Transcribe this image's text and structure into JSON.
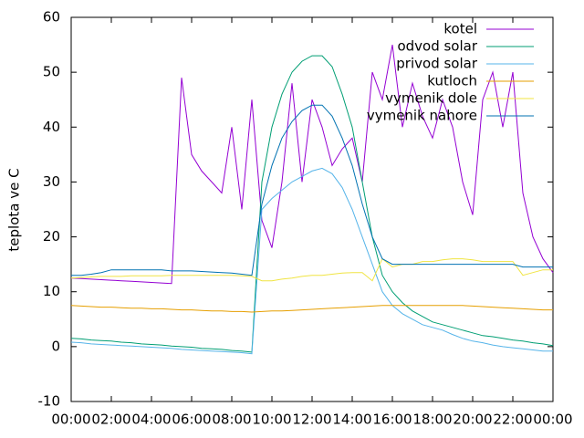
{
  "chart_data": {
    "type": "line",
    "ylabel": "teplota ve C",
    "x": [
      0,
      0.5,
      1,
      1.5,
      2,
      2.5,
      3,
      3.5,
      4,
      4.5,
      5,
      5.5,
      6,
      6.5,
      7,
      7.5,
      8,
      8.5,
      9,
      9.5,
      10,
      10.5,
      11,
      11.5,
      12,
      12.5,
      13,
      13.5,
      14,
      14.5,
      15,
      15.5,
      16,
      16.5,
      17,
      17.5,
      18,
      18.5,
      19,
      19.5,
      20,
      20.5,
      21,
      21.5,
      22,
      22.5,
      23,
      23.5,
      24
    ],
    "xlim": [
      0,
      24
    ],
    "xticks": [
      {
        "value": 0,
        "label": "00:00"
      },
      {
        "value": 2,
        "label": "02:00"
      },
      {
        "value": 4,
        "label": "04:00"
      },
      {
        "value": 6,
        "label": "06:00"
      },
      {
        "value": 8,
        "label": "08:00"
      },
      {
        "value": 10,
        "label": "10:00"
      },
      {
        "value": 12,
        "label": "12:00"
      },
      {
        "value": 14,
        "label": "14:00"
      },
      {
        "value": 16,
        "label": "16:00"
      },
      {
        "value": 18,
        "label": "18:00"
      },
      {
        "value": 20,
        "label": "20:00"
      },
      {
        "value": 22,
        "label": "22:00"
      },
      {
        "value": 24,
        "label": "00:00"
      }
    ],
    "ylim": [
      -10,
      60
    ],
    "yticks": [
      -10,
      0,
      10,
      20,
      30,
      40,
      50,
      60
    ],
    "legend": "top-right",
    "series": [
      {
        "name": "kotel",
        "color": "#9400d3",
        "values": [
          12.5,
          12.4,
          12.3,
          12.2,
          12.1,
          12,
          11.9,
          11.8,
          11.7,
          11.6,
          11.5,
          49,
          35,
          32,
          30,
          28,
          40,
          25,
          45,
          23,
          18,
          30,
          48,
          30,
          45,
          40,
          33,
          36,
          38,
          30,
          50,
          45,
          55,
          40,
          48,
          42,
          38,
          45,
          40,
          30,
          24,
          45,
          50,
          40,
          50,
          28,
          20,
          16,
          13.5
        ]
      },
      {
        "name": "odvod solar",
        "color": "#009e73",
        "values": [
          1.5,
          1.4,
          1.2,
          1.1,
          1,
          0.8,
          0.7,
          0.5,
          0.4,
          0.3,
          0.1,
          0,
          -0.1,
          -0.3,
          -0.4,
          -0.5,
          -0.7,
          -0.8,
          -1,
          30,
          40,
          46,
          50,
          52,
          53,
          53,
          51,
          46,
          40,
          30,
          20,
          13,
          10,
          8,
          6.5,
          5.5,
          4.5,
          4,
          3.5,
          3,
          2.5,
          2,
          1.8,
          1.5,
          1.2,
          1,
          0.7,
          0.5,
          0.2
        ]
      },
      {
        "name": "privod solar",
        "color": "#56b4e9",
        "values": [
          0.8,
          0.7,
          0.5,
          0.4,
          0.3,
          0.2,
          0.1,
          0,
          -0.1,
          -0.2,
          -0.3,
          -0.5,
          -0.6,
          -0.7,
          -0.8,
          -0.9,
          -1,
          -1.1,
          -1.3,
          25,
          27,
          28.5,
          30,
          31,
          32,
          32.5,
          31.5,
          29,
          25,
          20,
          15,
          10,
          7.5,
          6,
          5,
          4,
          3.5,
          3,
          2.2,
          1.5,
          1,
          0.7,
          0.3,
          0,
          -0.2,
          -0.4,
          -0.6,
          -0.8,
          -0.8
        ]
      },
      {
        "name": "kutloch",
        "color": "#e69f00",
        "values": [
          7.5,
          7.4,
          7.3,
          7.2,
          7.2,
          7.1,
          7,
          7,
          6.9,
          6.9,
          6.8,
          6.7,
          6.7,
          6.6,
          6.5,
          6.5,
          6.4,
          6.4,
          6.3,
          6.4,
          6.5,
          6.5,
          6.6,
          6.7,
          6.8,
          6.9,
          7,
          7.1,
          7.2,
          7.3,
          7.4,
          7.5,
          7.5,
          7.5,
          7.5,
          7.5,
          7.5,
          7.5,
          7.5,
          7.5,
          7.4,
          7.3,
          7.2,
          7.1,
          7,
          6.9,
          6.8,
          6.7,
          6.7
        ]
      },
      {
        "name": "vymenik dole",
        "color": "#f0e442",
        "values": [
          12.5,
          12.6,
          12.7,
          12.8,
          12.8,
          12.8,
          12.9,
          12.9,
          12.9,
          12.9,
          13,
          13,
          13,
          13,
          13,
          13,
          13,
          12.9,
          12.8,
          12,
          12,
          12.3,
          12.5,
          12.8,
          13,
          13,
          13.2,
          13.4,
          13.5,
          13.5,
          12,
          16,
          14.5,
          15,
          15,
          15.5,
          15.5,
          15.8,
          16,
          16,
          15.8,
          15.5,
          15.5,
          15.5,
          15.5,
          13,
          13.5,
          14,
          14
        ]
      },
      {
        "name": "vymenik nahore",
        "color": "#0072b2",
        "values": [
          13,
          13,
          13.2,
          13.5,
          14,
          14,
          14,
          14,
          14,
          14,
          13.8,
          13.8,
          13.8,
          13.7,
          13.6,
          13.5,
          13.4,
          13.2,
          13,
          26,
          33,
          38,
          41,
          43,
          44,
          44,
          42,
          38,
          33,
          26,
          20,
          16,
          15,
          15,
          15,
          15,
          15,
          15,
          15,
          15,
          15,
          15,
          15,
          15,
          15,
          14.5,
          14.5,
          14.5,
          14.5
        ]
      }
    ]
  }
}
